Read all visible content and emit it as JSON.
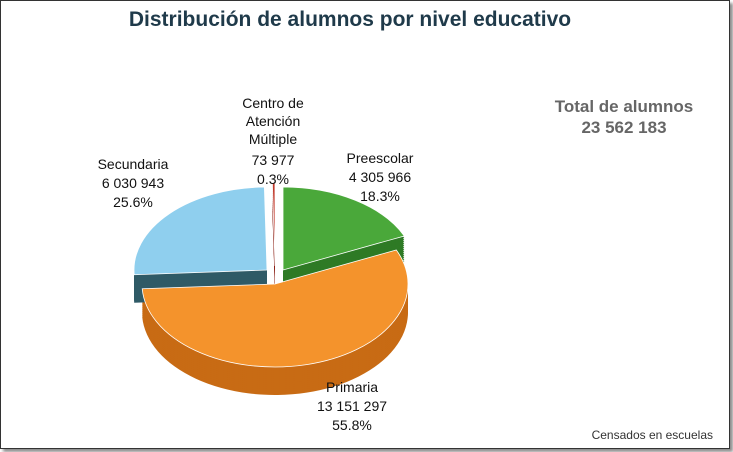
{
  "title": "Distribución de alumnos por nivel educativo",
  "total": {
    "label": "Total de alumnos",
    "value": "23 562 183"
  },
  "footnote": "Censados en escuelas",
  "chart_data": {
    "type": "pie",
    "title": "Distribución de alumnos por nivel educativo",
    "slices": [
      {
        "name": "Preescolar",
        "value": 4305966,
        "value_label": "4 305 966",
        "percent": 18.3,
        "percent_label": "18.3%",
        "color": "#4aa83a",
        "side": "#2e7a25"
      },
      {
        "name": "Primaria",
        "value": 13151297,
        "value_label": "13 151 297",
        "percent": 55.8,
        "percent_label": "55.8%",
        "color": "#f4932c",
        "side": "#c86b14"
      },
      {
        "name": "Secundaria",
        "value": 6030943,
        "value_label": "6 030 943",
        "percent": 25.6,
        "percent_label": "25.6%",
        "color": "#8fcfee",
        "side": "#2f5a66"
      },
      {
        "name": "Centro de Atención Múltiple",
        "value": 73977,
        "value_label": "73 977",
        "percent": 0.3,
        "percent_label": "0.3%",
        "color": "#c0392b",
        "side": "#8a1f14"
      }
    ]
  }
}
